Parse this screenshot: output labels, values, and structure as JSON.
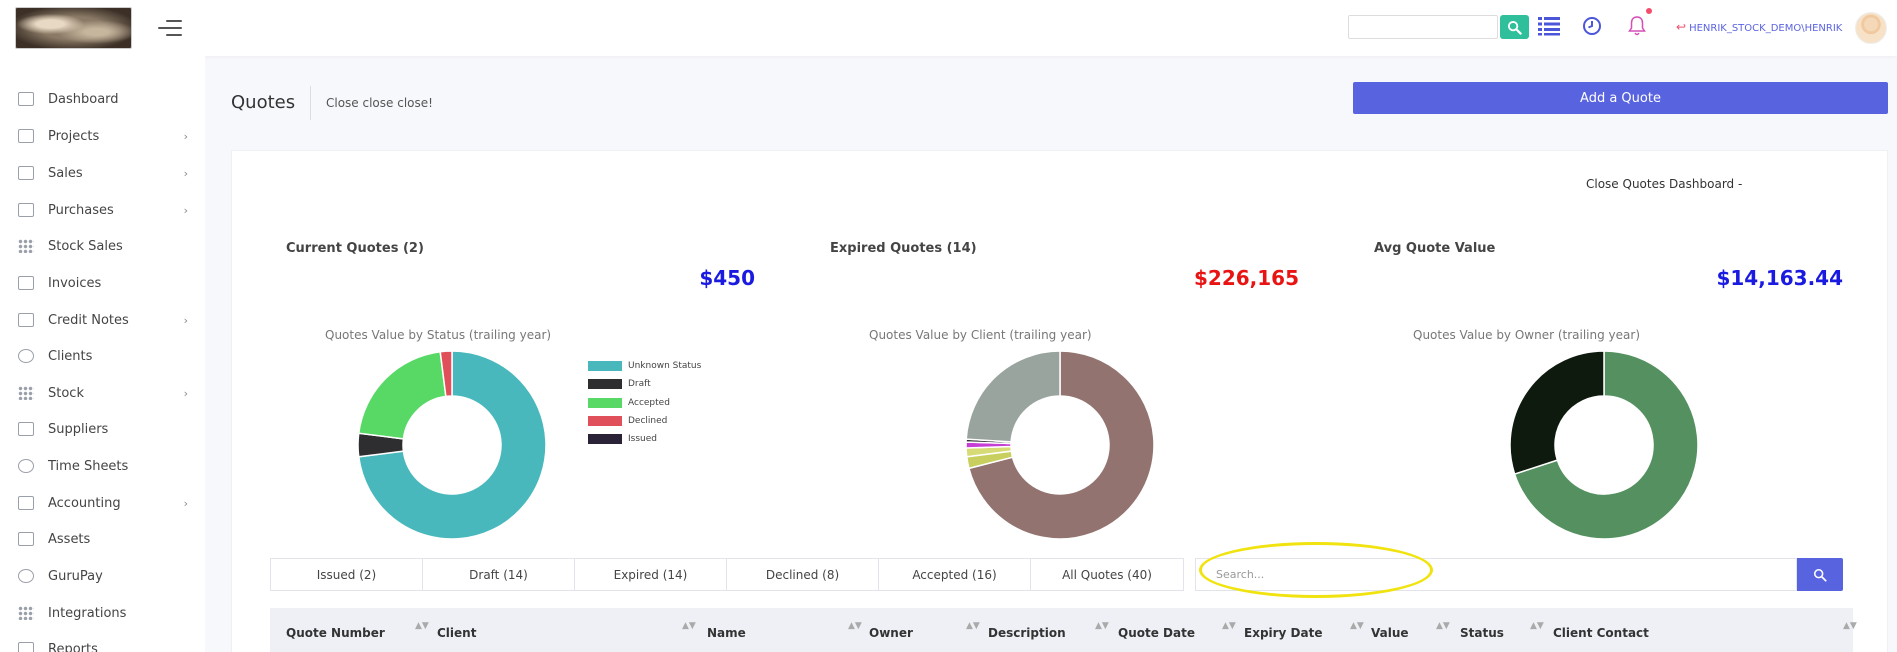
{
  "header": {
    "user_label": "HENRIK_STOCK_DEMO\\HENRIK",
    "search_placeholder": ""
  },
  "sidebar": {
    "items": [
      {
        "label": "Dashboard",
        "has_children": false
      },
      {
        "label": "Projects",
        "has_children": true
      },
      {
        "label": "Sales",
        "has_children": true
      },
      {
        "label": "Purchases",
        "has_children": true
      },
      {
        "label": "Stock Sales",
        "has_children": false
      },
      {
        "label": "Invoices",
        "has_children": false
      },
      {
        "label": "Credit Notes",
        "has_children": true
      },
      {
        "label": "Clients",
        "has_children": false
      },
      {
        "label": "Stock",
        "has_children": true
      },
      {
        "label": "Suppliers",
        "has_children": false
      },
      {
        "label": "Time Sheets",
        "has_children": false
      },
      {
        "label": "Accounting",
        "has_children": true
      },
      {
        "label": "Assets",
        "has_children": false
      },
      {
        "label": "GuruPay",
        "has_children": false
      },
      {
        "label": "Integrations",
        "has_children": false
      },
      {
        "label": "Reports",
        "has_children": false
      }
    ],
    "chevron": "›"
  },
  "page": {
    "title": "Quotes",
    "subtitle": "Close close close!",
    "add_button": "Add a Quote",
    "dashboard_title": "Close Quotes Dashboard -"
  },
  "stats": [
    {
      "label": "Current Quotes (2)",
      "value": "$450",
      "color": "#1a1ae0"
    },
    {
      "label": "Expired Quotes (14)",
      "value": "$226,165",
      "color": "#e81414"
    },
    {
      "label": "Avg Quote Value",
      "value": "$14,163.44",
      "color": "#1a1ae0"
    }
  ],
  "chart_data": [
    {
      "type": "pie",
      "donut": true,
      "title": "Quotes Value by Status (trailing year)",
      "legend_position": "right",
      "slices": [
        {
          "label": "Unknown Status",
          "value": 73,
          "color": "#48b8bc"
        },
        {
          "label": "Draft",
          "value": 4,
          "color": "#2e2e30"
        },
        {
          "label": "Accepted",
          "value": 21,
          "color": "#58d865"
        },
        {
          "label": "Declined",
          "value": 2,
          "color": "#e0505a"
        },
        {
          "label": "Issued",
          "value": 0,
          "color": "#2a2338"
        }
      ]
    },
    {
      "type": "pie",
      "donut": true,
      "title": "Quotes Value by Client (trailing year)",
      "slices": [
        {
          "value": 71,
          "color": "#937370"
        },
        {
          "value": 2,
          "color": "#c8cf5f"
        },
        {
          "value": 1.5,
          "color": "#d7db76"
        },
        {
          "value": 1,
          "color": "#c53fd6"
        },
        {
          "value": 0.5,
          "color": "#2a2a30"
        },
        {
          "value": 24,
          "color": "#9aa49f"
        }
      ]
    },
    {
      "type": "pie",
      "donut": true,
      "title": "Quotes Value by Owner (trailing year)",
      "slices": [
        {
          "value": 70,
          "color": "#559160"
        },
        {
          "value": 30,
          "color": "#0d1a0d"
        }
      ]
    }
  ],
  "tabs": [
    {
      "label": "Issued (2)"
    },
    {
      "label": "Draft (14)"
    },
    {
      "label": "Expired (14)"
    },
    {
      "label": "Declined (8)"
    },
    {
      "label": "Accepted (16)"
    },
    {
      "label": "All Quotes (40)"
    }
  ],
  "table_search": {
    "placeholder": "Search..."
  },
  "table": {
    "columns": [
      "Quote Number",
      "Client",
      "Name",
      "Owner",
      "Description",
      "Quote Date",
      "Expiry Date",
      "Value",
      "Status",
      "Client Contact"
    ]
  },
  "sort_glyph": "▲▼"
}
